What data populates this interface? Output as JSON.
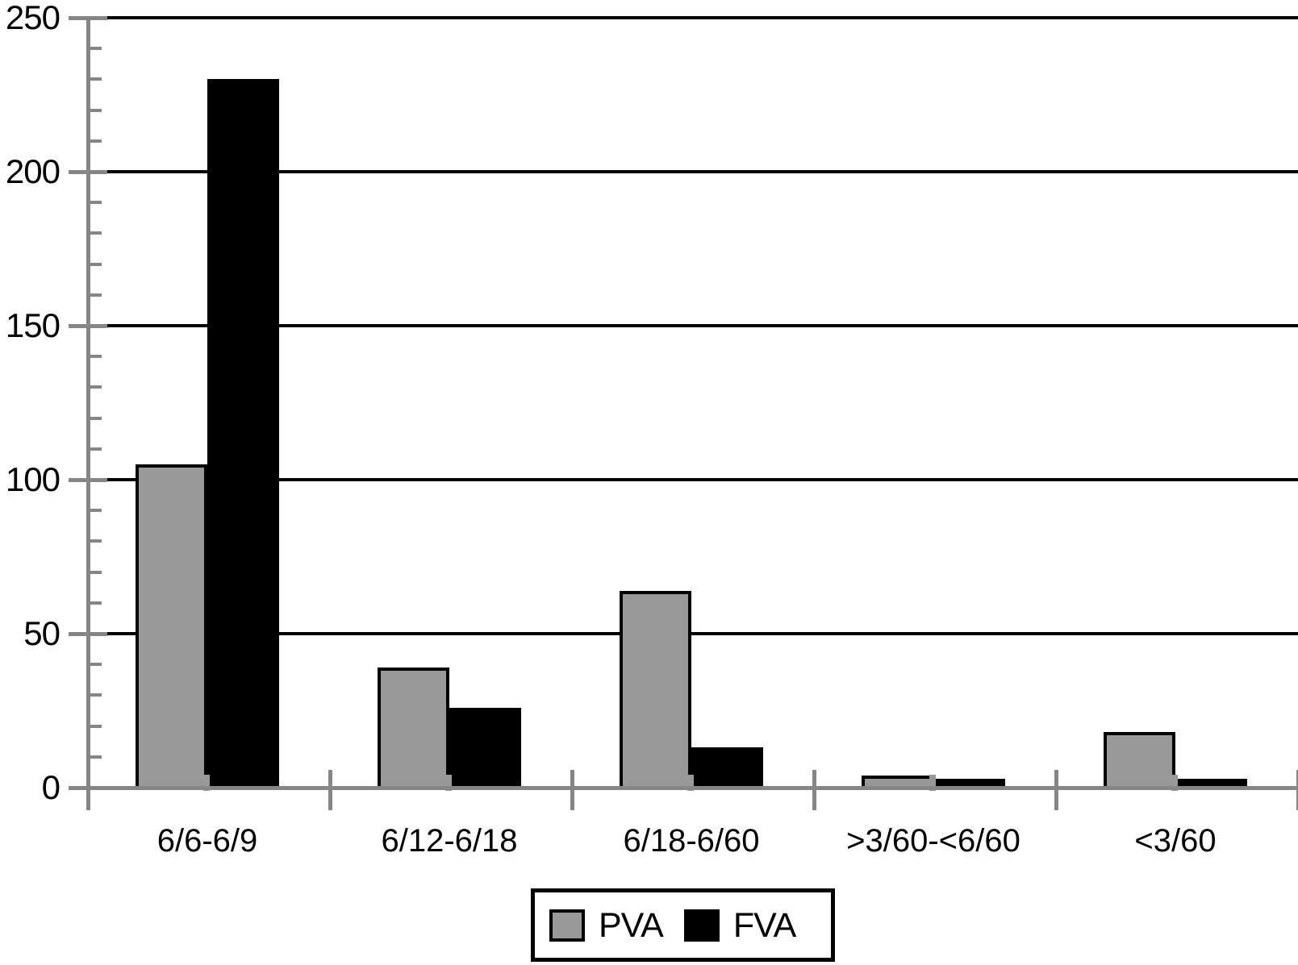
{
  "colors": {
    "background": "#ffffff",
    "axis_gray": "#868686",
    "gridline_black": "#000000",
    "text_black": "#000000",
    "bar_gray": "#999999",
    "bar_black": "#000000"
  },
  "chart_data": {
    "type": "bar",
    "title": "",
    "xlabel": "",
    "ylabel": "",
    "categories": [
      "6/6-6/9",
      "6/12-6/18",
      "6/18-6/60",
      ">3/60-<6/60",
      "<3/60"
    ],
    "series": [
      {
        "name": "PVA",
        "color": "#999999",
        "values": [
          105,
          39,
          64,
          4,
          18
        ]
      },
      {
        "name": "FVA",
        "color": "#000000",
        "values": [
          230,
          26,
          13,
          3,
          3
        ]
      }
    ],
    "ylim": [
      0,
      250
    ],
    "yticks": [
      0,
      50,
      100,
      150,
      200,
      250
    ],
    "ytick_major_step": 50,
    "ytick_minor_step": 10,
    "grid": true,
    "grid_orientation": "horizontal",
    "legend_position": "bottom-center",
    "legend_labels": [
      "PVA",
      "FVA"
    ]
  }
}
